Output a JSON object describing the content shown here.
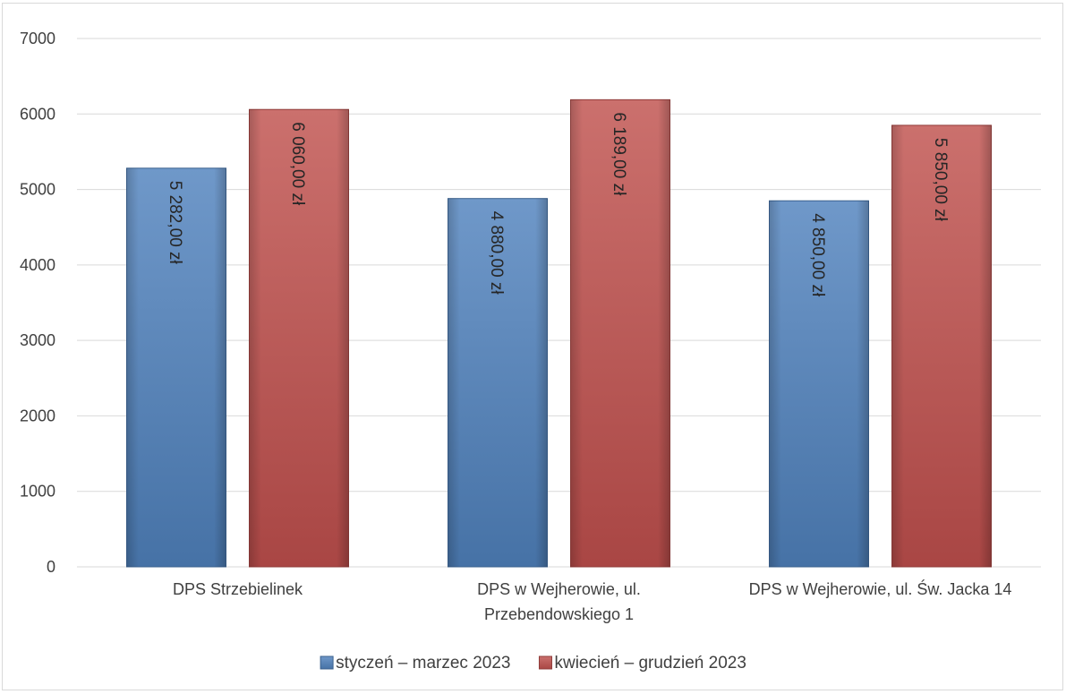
{
  "chart_data": {
    "type": "bar",
    "title": "",
    "xlabel": "",
    "ylabel": "",
    "categories": [
      [
        "DPS Strzebielinek"
      ],
      [
        "DPS w Wejherowie, ul.",
        "Przebendowskiego 1"
      ],
      [
        "DPS w Wejherowie, ul. Św. Jacka 14"
      ]
    ],
    "series": [
      {
        "name": "styczeń – marzec 2023",
        "values": [
          5282,
          4880,
          4850
        ],
        "labels": [
          "5 282,00 zł",
          "4 880,00 zł",
          "4 850,00 zł"
        ],
        "color": "#4f81bd"
      },
      {
        "name": "kwiecień – grudzień 2023",
        "values": [
          6060,
          6189,
          5850
        ],
        "labels": [
          "6 060,00 zł",
          "6 189,00 zł",
          "5 850,00 zł"
        ],
        "color": "#c0504d"
      }
    ],
    "ylim": [
      0,
      7000
    ],
    "yticks": [
      "0",
      "1000",
      "2000",
      "3000",
      "4000",
      "5000",
      "6000",
      "7000"
    ],
    "grid": true,
    "legend_position": "bottom"
  }
}
